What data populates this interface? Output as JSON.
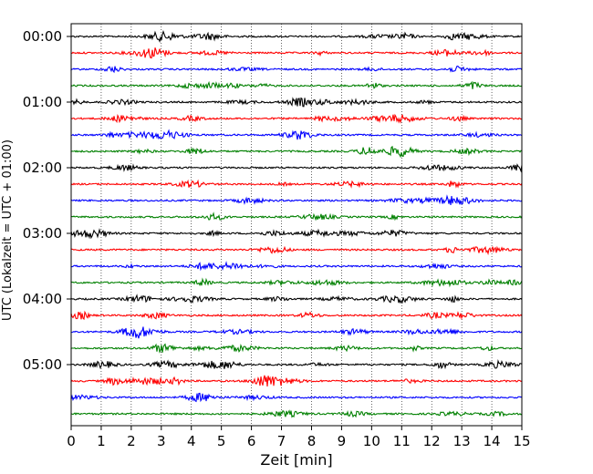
{
  "chart_data": {
    "type": "line",
    "title": "",
    "xlabel": "Zeit  [min]",
    "ylabel": "UTC (Lokalzeit = UTC + 01:00)",
    "xlim": [
      0,
      15
    ],
    "x_ticks": [
      0,
      1,
      2,
      3,
      4,
      5,
      6,
      7,
      8,
      9,
      10,
      11,
      12,
      13,
      14,
      15
    ],
    "x_tick_labels": [
      "0",
      "1",
      "2",
      "3",
      "4",
      "5",
      "6",
      "7",
      "8",
      "9",
      "10",
      "11",
      "12",
      "13",
      "14",
      "15"
    ],
    "x_grid": "dotted vertical lines at every minute",
    "trace_interval_min": 15,
    "traces_count": 24,
    "hour_labels": [
      "00:00",
      "01:00",
      "02:00",
      "03:00",
      "04:00",
      "05:00"
    ],
    "trace_colors": [
      "#000000",
      "#ff0000",
      "#0000ff",
      "#008000"
    ]
  }
}
